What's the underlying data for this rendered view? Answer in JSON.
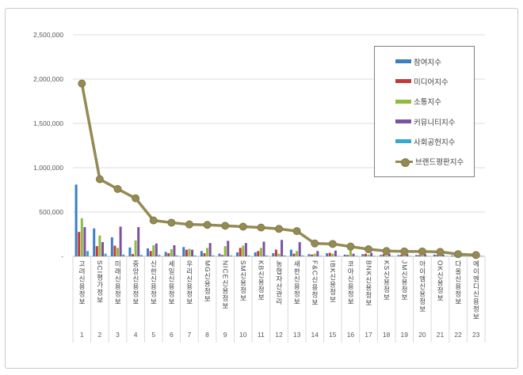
{
  "chart_data": {
    "type": "bar+line",
    "title": "",
    "xlabel": "",
    "ylabel": "",
    "ylim": [
      0,
      2500000
    ],
    "grid": true,
    "legend_position": "top-right-overlay",
    "yticks": [
      {
        "label": "2,500,000",
        "value": 2500000
      },
      {
        "label": "2,000,000",
        "value": 2000000
      },
      {
        "label": "1,500,000",
        "value": 1500000
      },
      {
        "label": "1,000,000",
        "value": 1000000
      },
      {
        "label": "500,000",
        "value": 500000
      },
      {
        "label": "-",
        "value": 0
      }
    ],
    "categories": [
      "고려신용정보",
      "SCI평가정보",
      "미래신용정보",
      "중앙신용정보",
      "신한신용정보",
      "세일신용정보",
      "우리신용정보",
      "MG신용정보",
      "NICE신용정보",
      "SM신용정보",
      "KB신용정보",
      "농협자산관리",
      "새한신용정보",
      "F&C신용정보",
      "IBK신용정보",
      "코아신용정보",
      "BNK신용정보",
      "KS신용정보",
      "JM신용정보",
      "아이엠신용정보",
      "OK신용정보",
      "다올신용정보",
      "에이엔디신용정보"
    ],
    "ranks": [
      "1",
      "2",
      "3",
      "4",
      "5",
      "6",
      "7",
      "8",
      "9",
      "10",
      "11",
      "12",
      "13",
      "14",
      "15",
      "16",
      "17",
      "18",
      "19",
      "20",
      "21",
      "22",
      "23"
    ],
    "series": [
      {
        "name": "참여지수",
        "type": "bar",
        "color": "#3d7ec1",
        "values": [
          810000,
          315000,
          215000,
          100000,
          90000,
          50000,
          105000,
          60000,
          30000,
          45000,
          45000,
          35000,
          75000,
          25000,
          35000,
          20000,
          25000,
          15000,
          15000,
          15000,
          20000,
          10000,
          5000
        ]
      },
      {
        "name": "미디어지수",
        "type": "bar",
        "color": "#c13b38",
        "values": [
          275000,
          115000,
          120000,
          25000,
          60000,
          35000,
          75000,
          35000,
          15000,
          95000,
          60000,
          75000,
          30000,
          20000,
          40000,
          15000,
          30000,
          25000,
          20000,
          15000,
          15000,
          10000,
          5000
        ]
      },
      {
        "name": "소통지수",
        "type": "bar",
        "color": "#8fbb40",
        "values": [
          430000,
          235000,
          95000,
          180000,
          125000,
          80000,
          85000,
          95000,
          115000,
          120000,
          95000,
          30000,
          60000,
          30000,
          30000,
          90000,
          20000,
          15000,
          15000,
          10000,
          10000,
          10000,
          5000
        ]
      },
      {
        "name": "커뮤니티지수",
        "type": "bar",
        "color": "#7c51a1",
        "values": [
          330000,
          160000,
          335000,
          330000,
          145000,
          125000,
          75000,
          150000,
          175000,
          150000,
          165000,
          185000,
          160000,
          60000,
          65000,
          30000,
          40000,
          30000,
          25000,
          25000,
          20000,
          15000,
          10000
        ]
      },
      {
        "name": "사회공헌지수",
        "type": "bar",
        "color": "#36a9ce",
        "values": [
          60000,
          30000,
          20000,
          15000,
          15000,
          10000,
          10000,
          10000,
          10000,
          10000,
          10000,
          10000,
          10000,
          5000,
          5000,
          5000,
          5000,
          5000,
          5000,
          5000,
          5000,
          5000,
          5000
        ]
      },
      {
        "name": "브랜드평판지수",
        "type": "line",
        "color": "#948a54",
        "marker_stroke": "#837a48",
        "values": [
          1950000,
          870000,
          760000,
          655000,
          405000,
          380000,
          360000,
          355000,
          345000,
          335000,
          325000,
          310000,
          285000,
          145000,
          140000,
          110000,
          80000,
          60000,
          55000,
          55000,
          50000,
          25000,
          15000
        ]
      }
    ],
    "colors": {
      "gridline": "#dcdcdc",
      "axis_line": "#bfbfbf",
      "separator": "#d9d9d9",
      "tick_text": "#595959",
      "frame_border": "#c9c9c9",
      "legend_border": "#7f7f7f"
    }
  }
}
